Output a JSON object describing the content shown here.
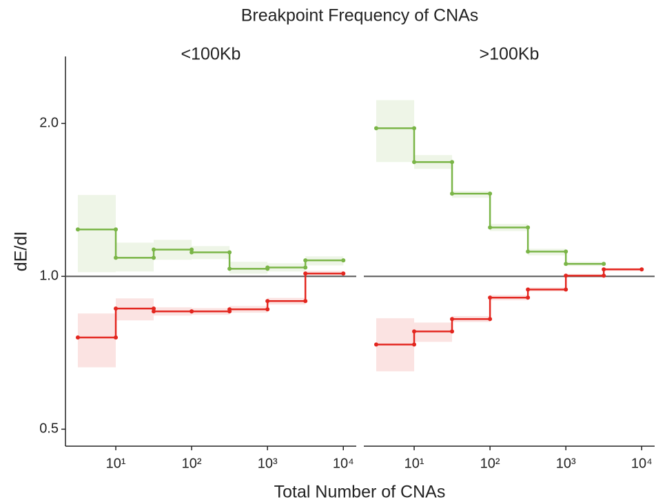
{
  "chart_data": {
    "type": "step",
    "title": "Breakpoint Frequency of CNAs",
    "x_label": "Total Number of CNAs",
    "y_label": "dE/dI",
    "log_x": true,
    "log_y": true,
    "xlim": [
      2.17,
      14800
    ],
    "ylim": [
      0.463,
      2.71
    ],
    "xticks": [
      {
        "value": 10,
        "label": "10¹"
      },
      {
        "value": 100,
        "label": "10²"
      },
      {
        "value": 1000,
        "label": "10³"
      },
      {
        "value": 10000,
        "label": "10⁴"
      }
    ],
    "yticks": [
      0.5,
      {
        "value": 1,
        "label": "1.0"
      },
      {
        "value": 2,
        "label": "2.0"
      }
    ],
    "hline": 1,
    "facets": [
      {
        "title": "<100Kb",
        "series": [
          {
            "color": "#7ab547",
            "bins": [
              3.16,
              10,
              31.6,
              100,
              316,
              1000,
              3160,
              10000
            ],
            "values": [
              1.237,
              1.088,
              1.129,
              1.115,
              1.035,
              1.041,
              1.075
            ],
            "lower": [
              1.019,
              1.022,
              1.078,
              1.081,
              1.012,
              1.022,
              1.051
            ],
            "upper": [
              1.446,
              1.165,
              1.18,
              1.147,
              1.068,
              1.061,
              1.095
            ]
          },
          {
            "color": "#e3261f",
            "bins": [
              3.16,
              10,
              31.6,
              100,
              316,
              1000,
              3160,
              10000
            ],
            "values": [
              0.758,
              0.864,
              0.853,
              0.853,
              0.861,
              0.894,
              1.013
            ],
            "lower": [
              0.662,
              0.819,
              0.837,
              0.84,
              0.848,
              0.88,
              1.0
            ],
            "upper": [
              0.845,
              0.905,
              0.869,
              0.866,
              0.874,
              0.907,
              1.025
            ]
          }
        ]
      },
      {
        "title": ">100Kb",
        "series": [
          {
            "color": "#7ab547",
            "bins": [
              3.16,
              10,
              31.6,
              100,
              316,
              1000,
              3160
            ],
            "values": [
              1.957,
              1.679,
              1.455,
              1.248,
              1.119,
              1.058
            ],
            "lower": [
              1.679,
              1.628,
              1.428,
              1.228,
              1.1,
              1.048
            ],
            "upper": [
              2.223,
              1.733,
              1.473,
              1.268,
              1.133,
              1.068
            ]
          },
          {
            "color": "#e3261f",
            "bins": [
              3.16,
              10,
              31.6,
              100,
              316,
              1000,
              3160,
              10000
            ],
            "values": [
              0.734,
              0.779,
              0.824,
              0.908,
              0.942,
              1.003,
              1.032
            ],
            "lower": [
              0.65,
              0.743,
              0.813,
              0.897,
              0.934,
              0.995,
              1.025
            ],
            "upper": [
              0.827,
              0.811,
              0.835,
              0.919,
              0.951,
              1.011,
              1.039
            ]
          }
        ]
      }
    ]
  }
}
